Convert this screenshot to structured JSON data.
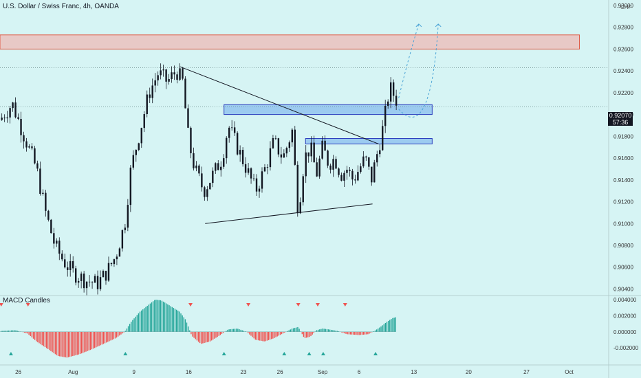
{
  "header": {
    "title": "U.S. Dollar / Swiss Franc, 4h, OANDA",
    "currency": "CHF"
  },
  "indicator": {
    "name": "MACD Candles"
  },
  "last_price": {
    "value": "0.92070",
    "countdown": "57:36"
  },
  "colors": {
    "background": "#d6f4f4",
    "up": "#26a69a",
    "down": "#ef5350",
    "candle": "#131722",
    "zone_blue": "#9ccbf0",
    "zone_red": "#e8c9c6",
    "projection": "#4aa3d6"
  },
  "chart_data": [
    {
      "type": "candlestick",
      "symbol": "USDCHF",
      "timeframe": "4h",
      "ylim": [
        0.9034,
        0.9305
      ],
      "y_ticks": [
        "0.93000",
        "0.92800",
        "0.92600",
        "0.92400",
        "0.92200",
        "0.92000",
        "0.91800",
        "0.91600",
        "0.91400",
        "0.91200",
        "0.91000",
        "0.90800",
        "0.90600",
        "0.90400"
      ],
      "x_ticks": [
        {
          "label": "26",
          "pos": 0.03
        },
        {
          "label": "Aug",
          "pos": 0.12
        },
        {
          "label": "9",
          "pos": 0.22
        },
        {
          "label": "16",
          "pos": 0.31
        },
        {
          "label": "23",
          "pos": 0.4
        },
        {
          "label": "26",
          "pos": 0.46
        },
        {
          "label": "Sep",
          "pos": 0.53
        },
        {
          "label": "6",
          "pos": 0.59
        },
        {
          "label": "13",
          "pos": 0.68
        },
        {
          "label": "20",
          "pos": 0.77
        },
        {
          "label": "27",
          "pos": 0.865
        },
        {
          "label": "Oct",
          "pos": 0.935
        }
      ],
      "close_path": [
        [
          0.0,
          0.9195
        ],
        [
          0.02,
          0.921
        ],
        [
          0.04,
          0.918
        ],
        [
          0.06,
          0.915
        ],
        [
          0.075,
          0.911
        ],
        [
          0.09,
          0.908
        ],
        [
          0.105,
          0.9065
        ],
        [
          0.12,
          0.9055
        ],
        [
          0.14,
          0.9048
        ],
        [
          0.16,
          0.9045
        ],
        [
          0.175,
          0.9055
        ],
        [
          0.19,
          0.907
        ],
        [
          0.205,
          0.91
        ],
        [
          0.215,
          0.915
        ],
        [
          0.23,
          0.9185
        ],
        [
          0.245,
          0.922
        ],
        [
          0.26,
          0.9238
        ],
        [
          0.275,
          0.923
        ],
        [
          0.29,
          0.924
        ],
        [
          0.3,
          0.923
        ],
        [
          0.31,
          0.9175
        ],
        [
          0.32,
          0.915
        ],
        [
          0.335,
          0.913
        ],
        [
          0.35,
          0.9145
        ],
        [
          0.365,
          0.916
        ],
        [
          0.375,
          0.919
        ],
        [
          0.39,
          0.917
        ],
        [
          0.405,
          0.915
        ],
        [
          0.42,
          0.913
        ],
        [
          0.435,
          0.915
        ],
        [
          0.45,
          0.9175
        ],
        [
          0.465,
          0.916
        ],
        [
          0.48,
          0.9185
        ],
        [
          0.49,
          0.911
        ],
        [
          0.5,
          0.916
        ],
        [
          0.51,
          0.917
        ],
        [
          0.52,
          0.9145
        ],
        [
          0.53,
          0.917
        ],
        [
          0.54,
          0.9155
        ],
        [
          0.55,
          0.916
        ],
        [
          0.56,
          0.9145
        ],
        [
          0.57,
          0.915
        ],
        [
          0.58,
          0.914
        ],
        [
          0.59,
          0.915
        ],
        [
          0.6,
          0.916
        ],
        [
          0.61,
          0.914
        ],
        [
          0.62,
          0.9165
        ],
        [
          0.63,
          0.919
        ],
        [
          0.64,
          0.9225
        ],
        [
          0.65,
          0.9215
        ],
        [
          0.655,
          0.9207
        ]
      ],
      "zones": [
        {
          "kind": "resistance",
          "y_range": [
            0.926,
            0.9273
          ],
          "x_range": [
            0.0,
            0.952
          ]
        },
        {
          "kind": "demand",
          "y_range": [
            0.92,
            0.9209
          ],
          "x_range": [
            0.368,
            0.71
          ]
        },
        {
          "kind": "demand",
          "y_range": [
            0.9173,
            0.9178
          ],
          "x_range": [
            0.502,
            0.71
          ]
        }
      ],
      "trendlines": [
        {
          "from": [
            0.295,
            0.9244
          ],
          "to": [
            0.622,
            0.9173
          ]
        },
        {
          "from": [
            0.337,
            0.91
          ],
          "to": [
            0.612,
            0.9118
          ]
        }
      ],
      "horizontal_lines": [
        {
          "y": 0.9243
        },
        {
          "y": 0.9207
        }
      ],
      "projections": [
        {
          "points": [
            [
              0.655,
              0.9215
            ],
            [
              0.67,
              0.925
            ],
            [
              0.688,
              0.9283
            ]
          ]
        },
        {
          "points": [
            [
              0.655,
              0.9205
            ],
            [
              0.69,
              0.9183
            ],
            [
              0.712,
              0.921
            ],
            [
              0.72,
              0.9283
            ]
          ]
        }
      ]
    },
    {
      "type": "bar",
      "name": "MACD Candles",
      "ylim": [
        -0.0036,
        0.0045
      ],
      "y_ticks": [
        "0.004000",
        "0.002000",
        "0.000000",
        "-0.002000"
      ],
      "histogram_path": [
        [
          0.0,
          0.0001
        ],
        [
          0.025,
          0.0002
        ],
        [
          0.045,
          -0.0002
        ],
        [
          0.06,
          -0.0012
        ],
        [
          0.08,
          -0.0022
        ],
        [
          0.095,
          -0.003
        ],
        [
          0.11,
          -0.0032
        ],
        [
          0.13,
          -0.0028
        ],
        [
          0.15,
          -0.0022
        ],
        [
          0.17,
          -0.0015
        ],
        [
          0.19,
          -0.0008
        ],
        [
          0.205,
          0.0
        ],
        [
          0.215,
          0.0012
        ],
        [
          0.23,
          0.0025
        ],
        [
          0.245,
          0.0034
        ],
        [
          0.255,
          0.004
        ],
        [
          0.265,
          0.0039
        ],
        [
          0.28,
          0.0032
        ],
        [
          0.295,
          0.0025
        ],
        [
          0.305,
          0.0015
        ],
        [
          0.315,
          -0.0005
        ],
        [
          0.33,
          -0.0015
        ],
        [
          0.345,
          -0.0012
        ],
        [
          0.36,
          -0.0005
        ],
        [
          0.375,
          0.0003
        ],
        [
          0.39,
          0.0004
        ],
        [
          0.405,
          0.0
        ],
        [
          0.42,
          -0.001
        ],
        [
          0.435,
          -0.0012
        ],
        [
          0.45,
          -0.0008
        ],
        [
          0.465,
          -0.0002
        ],
        [
          0.48,
          0.0004
        ],
        [
          0.49,
          0.0006
        ],
        [
          0.5,
          -0.0008
        ],
        [
          0.51,
          -0.0006
        ],
        [
          0.52,
          0.0002
        ],
        [
          0.53,
          0.0004
        ],
        [
          0.54,
          0.0003
        ],
        [
          0.555,
          0.0001
        ],
        [
          0.57,
          -0.0003
        ],
        [
          0.59,
          -0.0004
        ],
        [
          0.605,
          -0.0003
        ],
        [
          0.615,
          0.0001
        ],
        [
          0.625,
          0.0006
        ],
        [
          0.635,
          0.0012
        ],
        [
          0.645,
          0.0017
        ],
        [
          0.65,
          0.0018
        ]
      ],
      "sell_signals": [
        0.002,
        0.046,
        0.313,
        0.408,
        0.49,
        0.522,
        0.567
      ],
      "buy_signals": [
        0.018,
        0.206,
        0.368,
        0.467,
        0.508,
        0.531,
        0.617
      ]
    }
  ]
}
